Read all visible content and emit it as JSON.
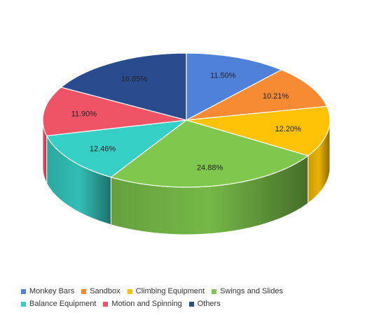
{
  "chart_data": {
    "type": "pie",
    "title": "",
    "categories": [
      "Monkey Bars",
      "Sandbox",
      "Climbing Equipment",
      "Swings and Slides",
      "Balance Equipment",
      "Motion and Spinning",
      "Others"
    ],
    "values": [
      11.5,
      10.21,
      12.2,
      24.88,
      12.46,
      11.9,
      16.85
    ],
    "value_labels": [
      "11.50%",
      "10.21%",
      "12.20%",
      "24.88%",
      "12.46%",
      "11.90%",
      "16.85%"
    ],
    "colors": [
      "#4f81d9",
      "#f78b34",
      "#fdc205",
      "#7fc84d",
      "#36cfc5",
      "#ef5466",
      "#2b4b8f"
    ],
    "legend_position": "bottom",
    "style": "3d"
  }
}
